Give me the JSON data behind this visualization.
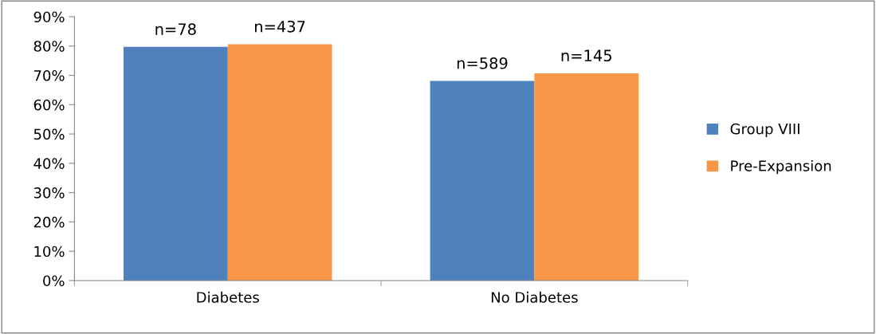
{
  "chart_data": {
    "type": "bar",
    "categories": [
      "Diabetes",
      "No Diabetes"
    ],
    "series": [
      {
        "name": "Group VIII",
        "color": "#4f81bd",
        "values": [
          79.7,
          68.1
        ]
      },
      {
        "name": "Pre-Expansion",
        "color": "#f79646",
        "values": [
          80.6,
          70.7
        ]
      }
    ],
    "annotations": [
      {
        "text": "n=78",
        "x": "Diabetes",
        "y": 79.7
      },
      {
        "text": "n=589",
        "x": "No Diabetes",
        "y": 68.1
      },
      {
        "text": "n=437",
        "x": "Diabetes",
        "y": 80.6
      },
      {
        "text": "n=145",
        "x": "No Diabetes",
        "y": 70.7
      }
    ],
    "ylim": [
      0,
      90
    ],
    "yticks": [
      {
        "value": 0,
        "label": "0%"
      },
      {
        "value": 10,
        "label": "10%"
      },
      {
        "value": 20,
        "label": "20%"
      },
      {
        "value": 30,
        "label": "30%"
      },
      {
        "value": 40,
        "label": "40%"
      },
      {
        "value": 50,
        "label": "50%"
      },
      {
        "value": 60,
        "label": "60%"
      },
      {
        "value": 70,
        "label": "70%"
      },
      {
        "value": 80,
        "label": "80%"
      },
      {
        "value": 90,
        "label": "90%"
      }
    ],
    "grid": false,
    "legend": "right"
  }
}
